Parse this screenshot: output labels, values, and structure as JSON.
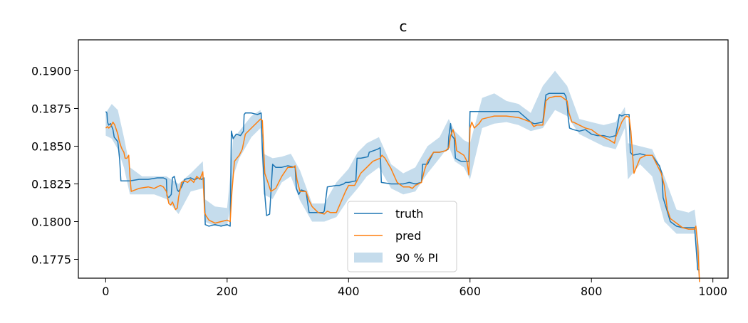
{
  "chart_data": {
    "type": "line",
    "title": "c",
    "xlabel": "",
    "ylabel": "",
    "xlim": [
      -45,
      1025
    ],
    "ylim": [
      0.17625,
      0.19205
    ],
    "x_ticks": [
      0,
      200,
      400,
      600,
      800,
      1000
    ],
    "x_tick_labels": [
      "0",
      "200",
      "400",
      "600",
      "800",
      "1000"
    ],
    "y_ticks": [
      0.1775,
      0.18,
      0.1825,
      0.185,
      0.1875,
      0.19
    ],
    "y_tick_labels": [
      "0.1775",
      "0.1800",
      "0.1825",
      "0.1850",
      "0.1875",
      "0.1900"
    ],
    "grid": false,
    "legend_position": "lower-center",
    "colors": {
      "truth": "#1f77b4",
      "pred": "#ff7f0e",
      "band": "#1f77b4"
    },
    "series": [
      {
        "name": "truth",
        "x": [
          0,
          2,
          3,
          5,
          8,
          12,
          14,
          16,
          20,
          23,
          25,
          40,
          55,
          70,
          85,
          95,
          100,
          101,
          104,
          108,
          110,
          113,
          118,
          120,
          125,
          130,
          140,
          145,
          148,
          152,
          158,
          162,
          164,
          170,
          180,
          190,
          200,
          205,
          207,
          210,
          215,
          222,
          227,
          228,
          230,
          240,
          250,
          256,
          258,
          262,
          265,
          270,
          275,
          280,
          290,
          300,
          312,
          314,
          318,
          322,
          330,
          335,
          340,
          350,
          358,
          360,
          365,
          380,
          385,
          392,
          395,
          400,
          412,
          414,
          420,
          432,
          434,
          448,
          452,
          454,
          470,
          490,
          500,
          510,
          520,
          522,
          530,
          540,
          550,
          560,
          564,
          565,
          568,
          570,
          574,
          576,
          580,
          585,
          595,
          598,
          600,
          602,
          604,
          610,
          620,
          640,
          660,
          680,
          700,
          705,
          708,
          720,
          725,
          730,
          740,
          750,
          755,
          758,
          760,
          762,
          764,
          770,
          780,
          790,
          800,
          810,
          820,
          830,
          840,
          844,
          846,
          850,
          855,
          858,
          862,
          864,
          868,
          880,
          890,
          895,
          900,
          910,
          912,
          916,
          918,
          930,
          940,
          950,
          960,
          970,
          975,
          978
        ],
        "y": [
          0.1873,
          0.1872,
          0.1866,
          0.1864,
          0.1865,
          0.1861,
          0.1856,
          0.1855,
          0.1853,
          0.1841,
          0.1827,
          0.1827,
          0.1828,
          0.1828,
          0.1829,
          0.1829,
          0.1828,
          0.1817,
          0.1816,
          0.1818,
          0.1829,
          0.183,
          0.1821,
          0.182,
          0.1823,
          0.1828,
          0.1829,
          0.1828,
          0.1828,
          0.1829,
          0.1828,
          0.1829,
          0.1798,
          0.1797,
          0.1798,
          0.1797,
          0.1798,
          0.1797,
          0.186,
          0.1855,
          0.1858,
          0.1857,
          0.186,
          0.1871,
          0.1872,
          0.1872,
          0.1871,
          0.1872,
          0.1848,
          0.1818,
          0.1804,
          0.1805,
          0.1838,
          0.1836,
          0.1836,
          0.1837,
          0.1836,
          0.1822,
          0.1818,
          0.1821,
          0.182,
          0.1806,
          0.1806,
          0.1806,
          0.1806,
          0.1807,
          0.1823,
          0.1824,
          0.1824,
          0.1825,
          0.1826,
          0.1826,
          0.1827,
          0.1842,
          0.1842,
          0.1843,
          0.1846,
          0.1848,
          0.1849,
          0.1826,
          0.1825,
          0.1825,
          0.1826,
          0.1825,
          0.1826,
          0.1838,
          0.1838,
          0.1846,
          0.1846,
          0.1847,
          0.1848,
          0.1856,
          0.1865,
          0.1857,
          0.1855,
          0.1842,
          0.1841,
          0.184,
          0.184,
          0.184,
          0.1873,
          0.1873,
          0.1873,
          0.1873,
          0.1873,
          0.1873,
          0.1873,
          0.1873,
          0.1866,
          0.1865,
          0.1865,
          0.1866,
          0.1884,
          0.1885,
          0.1885,
          0.1885,
          0.1885,
          0.1883,
          0.1877,
          0.1868,
          0.1862,
          0.1861,
          0.186,
          0.1861,
          0.1858,
          0.1857,
          0.1857,
          0.1856,
          0.1857,
          0.1866,
          0.1871,
          0.187,
          0.1871,
          0.1871,
          0.1871,
          0.1846,
          0.1844,
          0.1845,
          0.1844,
          0.1844,
          0.1844,
          0.1838,
          0.1837,
          0.1832,
          0.1816,
          0.18,
          0.1797,
          0.1796,
          0.1796,
          0.1796,
          0.1768,
          0.1768
        ]
      },
      {
        "name": "pred",
        "x": [
          0,
          3,
          5,
          8,
          12,
          15,
          20,
          22,
          25,
          27,
          30,
          32,
          35,
          38,
          40,
          42,
          55,
          70,
          80,
          90,
          95,
          100,
          104,
          107,
          110,
          115,
          118,
          120,
          125,
          130,
          135,
          140,
          145,
          150,
          155,
          160,
          163,
          165,
          170,
          180,
          190,
          200,
          205,
          208,
          212,
          220,
          225,
          230,
          240,
          250,
          255,
          258,
          262,
          268,
          272,
          280,
          290,
          300,
          308,
          312,
          315,
          320,
          330,
          335,
          340,
          350,
          360,
          365,
          370,
          380,
          395,
          400,
          410,
          415,
          420,
          430,
          440,
          452,
          455,
          460,
          470,
          480,
          490,
          500,
          505,
          510,
          520,
          525,
          530,
          540,
          550,
          560,
          565,
          568,
          572,
          575,
          578,
          590,
          595,
          598,
          600,
          603,
          607,
          615,
          620,
          630,
          640,
          650,
          660,
          680,
          700,
          705,
          710,
          720,
          725,
          730,
          740,
          750,
          760,
          763,
          768,
          770,
          780,
          790,
          800,
          810,
          820,
          830,
          838,
          840,
          850,
          855,
          858,
          862,
          865,
          870,
          880,
          890,
          900,
          905,
          915,
          920,
          925,
          930,
          940,
          950,
          960,
          970,
          972,
          975,
          978
        ],
        "y": [
          0.1862,
          0.1863,
          0.1862,
          0.1863,
          0.1866,
          0.1864,
          0.1858,
          0.1854,
          0.185,
          0.1848,
          0.1846,
          0.1842,
          0.1842,
          0.1844,
          0.183,
          0.182,
          0.1822,
          0.1823,
          0.1822,
          0.1824,
          0.1823,
          0.182,
          0.1812,
          0.1811,
          0.1813,
          0.1808,
          0.1809,
          0.1816,
          0.1826,
          0.1827,
          0.1826,
          0.1828,
          0.1826,
          0.183,
          0.1828,
          0.1833,
          0.1806,
          0.1804,
          0.1801,
          0.1799,
          0.18,
          0.1801,
          0.18,
          0.182,
          0.184,
          0.1844,
          0.1848,
          0.1858,
          0.1862,
          0.1866,
          0.1868,
          0.1867,
          0.1832,
          0.1825,
          0.182,
          0.1822,
          0.183,
          0.1836,
          0.1836,
          0.1837,
          0.1828,
          0.182,
          0.182,
          0.1814,
          0.181,
          0.1806,
          0.1805,
          0.1807,
          0.1806,
          0.1806,
          0.182,
          0.1824,
          0.1824,
          0.1828,
          0.1832,
          0.1836,
          0.184,
          0.1842,
          0.1844,
          0.1842,
          0.1835,
          0.1826,
          0.1823,
          0.1823,
          0.1822,
          0.1824,
          0.1826,
          0.1834,
          0.184,
          0.1846,
          0.1846,
          0.1847,
          0.1849,
          0.1857,
          0.1861,
          0.1857,
          0.1847,
          0.1844,
          0.184,
          0.1831,
          0.1862,
          0.1866,
          0.1862,
          0.1865,
          0.1868,
          0.1869,
          0.187,
          0.187,
          0.187,
          0.1869,
          0.1866,
          0.1863,
          0.1864,
          0.1864,
          0.188,
          0.1882,
          0.1883,
          0.1883,
          0.188,
          0.1872,
          0.1866,
          0.1866,
          0.1864,
          0.1862,
          0.1861,
          0.1858,
          0.1856,
          0.1854,
          0.1852,
          0.1856,
          0.1866,
          0.1869,
          0.187,
          0.1869,
          0.186,
          0.1832,
          0.1842,
          0.1844,
          0.1844,
          0.184,
          0.1832,
          0.1824,
          0.1808,
          0.1802,
          0.1799,
          0.1796,
          0.1795,
          0.1795,
          0.1797,
          0.1785,
          0.176
        ]
      },
      {
        "name": "90 % PI",
        "x": [
          0,
          10,
          20,
          30,
          40,
          60,
          80,
          100,
          120,
          140,
          160,
          163,
          180,
          200,
          205,
          210,
          220,
          240,
          255,
          260,
          275,
          290,
          305,
          320,
          340,
          360,
          380,
          400,
          415,
          430,
          450,
          470,
          490,
          510,
          530,
          550,
          565,
          575,
          590,
          600,
          620,
          640,
          660,
          680,
          700,
          720,
          740,
          760,
          780,
          800,
          820,
          840,
          855,
          860,
          880,
          900,
          920,
          940,
          960,
          970,
          978
        ],
        "lo": [
          0.1857,
          0.1855,
          0.1848,
          0.1836,
          0.1818,
          0.1818,
          0.1818,
          0.1815,
          0.1805,
          0.182,
          0.1822,
          0.18,
          0.1797,
          0.1797,
          0.181,
          0.183,
          0.1842,
          0.1856,
          0.1862,
          0.1818,
          0.1815,
          0.1826,
          0.183,
          0.1814,
          0.18,
          0.18,
          0.1803,
          0.1815,
          0.1822,
          0.183,
          0.1836,
          0.1822,
          0.1818,
          0.182,
          0.1832,
          0.1842,
          0.185,
          0.184,
          0.1836,
          0.1828,
          0.1862,
          0.1865,
          0.1866,
          0.1864,
          0.186,
          0.1862,
          0.1874,
          0.187,
          0.1858,
          0.1854,
          0.185,
          0.1848,
          0.1862,
          0.1828,
          0.1838,
          0.183,
          0.18,
          0.1792,
          0.1792,
          0.1792,
          0.1758
        ],
        "hi": [
          0.1872,
          0.1878,
          0.1874,
          0.1856,
          0.1836,
          0.183,
          0.183,
          0.183,
          0.1825,
          0.1832,
          0.184,
          0.1815,
          0.181,
          0.1809,
          0.183,
          0.1855,
          0.186,
          0.187,
          0.1874,
          0.1845,
          0.1842,
          0.1843,
          0.1845,
          0.1834,
          0.1812,
          0.1812,
          0.1826,
          0.1835,
          0.1846,
          0.1852,
          0.1856,
          0.1838,
          0.1832,
          0.1836,
          0.185,
          0.1856,
          0.1868,
          0.186,
          0.1854,
          0.1852,
          0.1882,
          0.1885,
          0.188,
          0.1878,
          0.1872,
          0.189,
          0.19,
          0.189,
          0.1868,
          0.1866,
          0.1864,
          0.1866,
          0.1876,
          0.1852,
          0.185,
          0.1848,
          0.183,
          0.1808,
          0.1806,
          0.1808,
          0.178
        ]
      }
    ]
  }
}
